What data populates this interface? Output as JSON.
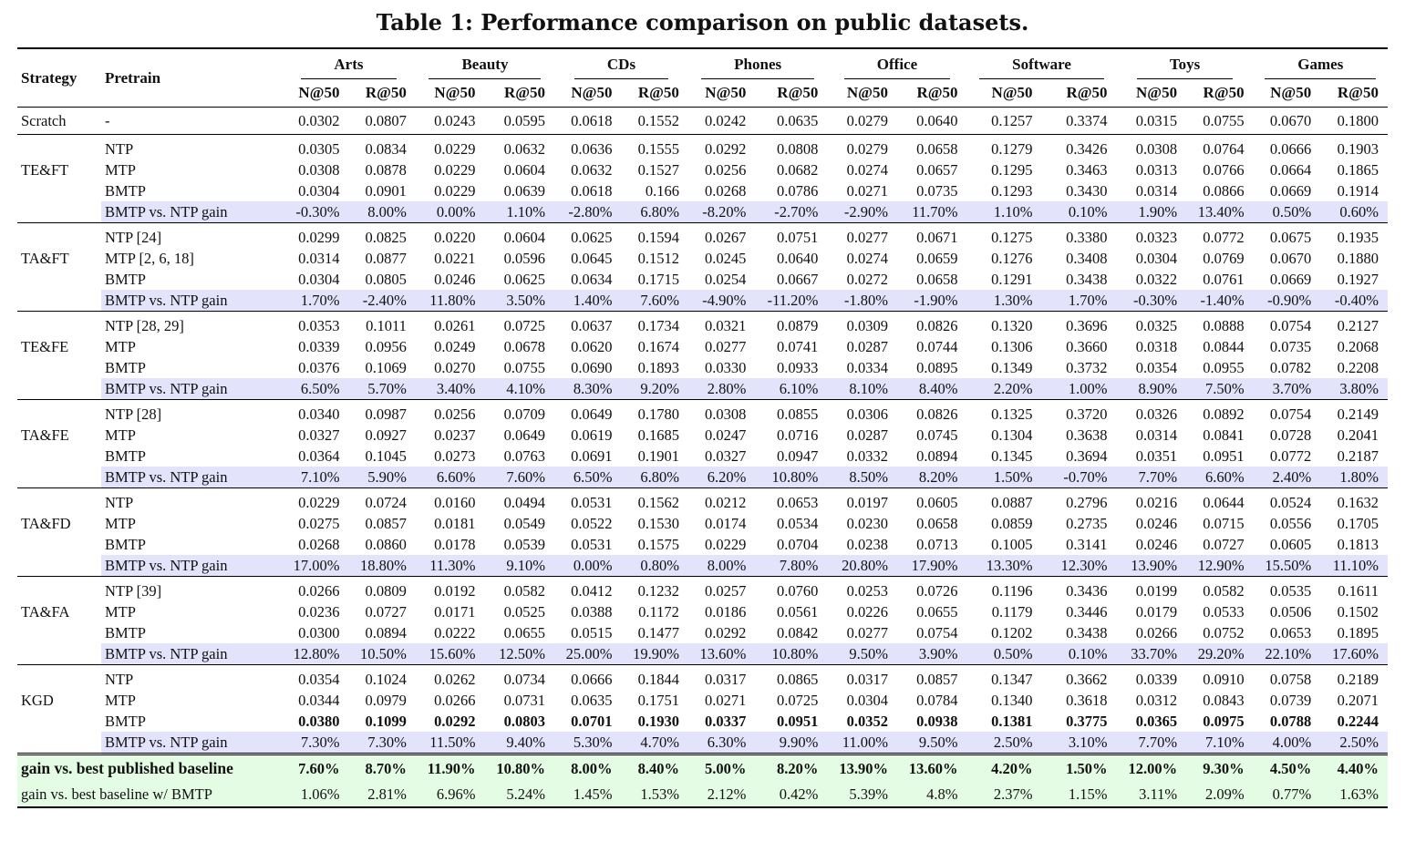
{
  "caption": "Table 1: Performance comparison on public datasets.",
  "headers": {
    "strategy": "Strategy",
    "pretrain": "Pretrain",
    "datasets": [
      "Arts",
      "Beauty",
      "CDs",
      "Phones",
      "Office",
      "Software",
      "Toys",
      "Games"
    ],
    "metrics": [
      "N@50",
      "R@50"
    ]
  },
  "scratch": {
    "strategy": "Scratch",
    "pretrain": "-",
    "values": [
      "0.0302",
      "0.0807",
      "0.0243",
      "0.0595",
      "0.0618",
      "0.1552",
      "0.0242",
      "0.0635",
      "0.0279",
      "0.0640",
      "0.1257",
      "0.3374",
      "0.0315",
      "0.0755",
      "0.0670",
      "0.1800"
    ]
  },
  "groups": [
    {
      "strategy": "TE&FT",
      "rows": [
        {
          "pretrain": "NTP",
          "values": [
            "0.0305",
            "0.0834",
            "0.0229",
            "0.0632",
            "0.0636",
            "0.1555",
            "0.0292",
            "0.0808",
            "0.0279",
            "0.0658",
            "0.1279",
            "0.3426",
            "0.0308",
            "0.0764",
            "0.0666",
            "0.1903"
          ]
        },
        {
          "pretrain": "MTP",
          "values": [
            "0.0308",
            "0.0878",
            "0.0229",
            "0.0604",
            "0.0632",
            "0.1527",
            "0.0256",
            "0.0682",
            "0.0274",
            "0.0657",
            "0.1295",
            "0.3463",
            "0.0313",
            "0.0766",
            "0.0664",
            "0.1865"
          ]
        },
        {
          "pretrain": "BMTP",
          "values": [
            "0.0304",
            "0.0901",
            "0.0229",
            "0.0639",
            "0.0618",
            "0.166",
            "0.0268",
            "0.0786",
            "0.0271",
            "0.0735",
            "0.1293",
            "0.3430",
            "0.0314",
            "0.0866",
            "0.0669",
            "0.1914"
          ]
        },
        {
          "pretrain": "BMTP vs. NTP gain",
          "gain": true,
          "values": [
            "-0.30%",
            "8.00%",
            "0.00%",
            "1.10%",
            "-2.80%",
            "6.80%",
            "-8.20%",
            "-2.70%",
            "-2.90%",
            "11.70%",
            "1.10%",
            "0.10%",
            "1.90%",
            "13.40%",
            "0.50%",
            "0.60%"
          ]
        }
      ]
    },
    {
      "strategy": "TA&FT",
      "rows": [
        {
          "pretrain": "NTP [24]",
          "values": [
            "0.0299",
            "0.0825",
            "0.0220",
            "0.0604",
            "0.0625",
            "0.1594",
            "0.0267",
            "0.0751",
            "0.0277",
            "0.0671",
            "0.1275",
            "0.3380",
            "0.0323",
            "0.0772",
            "0.0675",
            "0.1935"
          ]
        },
        {
          "pretrain": "MTP [2, 6, 18]",
          "values": [
            "0.0314",
            "0.0877",
            "0.0221",
            "0.0596",
            "0.0645",
            "0.1512",
            "0.0245",
            "0.0640",
            "0.0274",
            "0.0659",
            "0.1276",
            "0.3408",
            "0.0304",
            "0.0769",
            "0.0670",
            "0.1880"
          ]
        },
        {
          "pretrain": "BMTP",
          "values": [
            "0.0304",
            "0.0805",
            "0.0246",
            "0.0625",
            "0.0634",
            "0.1715",
            "0.0254",
            "0.0667",
            "0.0272",
            "0.0658",
            "0.1291",
            "0.3438",
            "0.0322",
            "0.0761",
            "0.0669",
            "0.1927"
          ]
        },
        {
          "pretrain": "BMTP vs. NTP gain",
          "gain": true,
          "values": [
            "1.70%",
            "-2.40%",
            "11.80%",
            "3.50%",
            "1.40%",
            "7.60%",
            "-4.90%",
            "-11.20%",
            "-1.80%",
            "-1.90%",
            "1.30%",
            "1.70%",
            "-0.30%",
            "-1.40%",
            "-0.90%",
            "-0.40%"
          ]
        }
      ]
    },
    {
      "strategy": "TE&FE",
      "rows": [
        {
          "pretrain": "NTP [28, 29]",
          "values": [
            "0.0353",
            "0.1011",
            "0.0261",
            "0.0725",
            "0.0637",
            "0.1734",
            "0.0321",
            "0.0879",
            "0.0309",
            "0.0826",
            "0.1320",
            "0.3696",
            "0.0325",
            "0.0888",
            "0.0754",
            "0.2127"
          ]
        },
        {
          "pretrain": "MTP",
          "values": [
            "0.0339",
            "0.0956",
            "0.0249",
            "0.0678",
            "0.0620",
            "0.1674",
            "0.0277",
            "0.0741",
            "0.0287",
            "0.0744",
            "0.1306",
            "0.3660",
            "0.0318",
            "0.0844",
            "0.0735",
            "0.2068"
          ]
        },
        {
          "pretrain": "BMTP",
          "values": [
            "0.0376",
            "0.1069",
            "0.0270",
            "0.0755",
            "0.0690",
            "0.1893",
            "0.0330",
            "0.0933",
            "0.0334",
            "0.0895",
            "0.1349",
            "0.3732",
            "0.0354",
            "0.0955",
            "0.0782",
            "0.2208"
          ]
        },
        {
          "pretrain": "BMTP vs. NTP gain",
          "gain": true,
          "values": [
            "6.50%",
            "5.70%",
            "3.40%",
            "4.10%",
            "8.30%",
            "9.20%",
            "2.80%",
            "6.10%",
            "8.10%",
            "8.40%",
            "2.20%",
            "1.00%",
            "8.90%",
            "7.50%",
            "3.70%",
            "3.80%"
          ]
        }
      ]
    },
    {
      "strategy": "TA&FE",
      "rows": [
        {
          "pretrain": "NTP [28]",
          "values": [
            "0.0340",
            "0.0987",
            "0.0256",
            "0.0709",
            "0.0649",
            "0.1780",
            "0.0308",
            "0.0855",
            "0.0306",
            "0.0826",
            "0.1325",
            "0.3720",
            "0.0326",
            "0.0892",
            "0.0754",
            "0.2149"
          ]
        },
        {
          "pretrain": "MTP",
          "values": [
            "0.0327",
            "0.0927",
            "0.0237",
            "0.0649",
            "0.0619",
            "0.1685",
            "0.0247",
            "0.0716",
            "0.0287",
            "0.0745",
            "0.1304",
            "0.3638",
            "0.0314",
            "0.0841",
            "0.0728",
            "0.2041"
          ]
        },
        {
          "pretrain": "BMTP",
          "values": [
            "0.0364",
            "0.1045",
            "0.0273",
            "0.0763",
            "0.0691",
            "0.1901",
            "0.0327",
            "0.0947",
            "0.0332",
            "0.0894",
            "0.1345",
            "0.3694",
            "0.0351",
            "0.0951",
            "0.0772",
            "0.2187"
          ]
        },
        {
          "pretrain": "BMTP vs. NTP gain",
          "gain": true,
          "values": [
            "7.10%",
            "5.90%",
            "6.60%",
            "7.60%",
            "6.50%",
            "6.80%",
            "6.20%",
            "10.80%",
            "8.50%",
            "8.20%",
            "1.50%",
            "-0.70%",
            "7.70%",
            "6.60%",
            "2.40%",
            "1.80%"
          ]
        }
      ]
    },
    {
      "strategy": "TA&FD",
      "rows": [
        {
          "pretrain": "NTP",
          "values": [
            "0.0229",
            "0.0724",
            "0.0160",
            "0.0494",
            "0.0531",
            "0.1562",
            "0.0212",
            "0.0653",
            "0.0197",
            "0.0605",
            "0.0887",
            "0.2796",
            "0.0216",
            "0.0644",
            "0.0524",
            "0.1632"
          ]
        },
        {
          "pretrain": "MTP",
          "values": [
            "0.0275",
            "0.0857",
            "0.0181",
            "0.0549",
            "0.0522",
            "0.1530",
            "0.0174",
            "0.0534",
            "0.0230",
            "0.0658",
            "0.0859",
            "0.2735",
            "0.0246",
            "0.0715",
            "0.0556",
            "0.1705"
          ]
        },
        {
          "pretrain": "BMTP",
          "values": [
            "0.0268",
            "0.0860",
            "0.0178",
            "0.0539",
            "0.0531",
            "0.1575",
            "0.0229",
            "0.0704",
            "0.0238",
            "0.0713",
            "0.1005",
            "0.3141",
            "0.0246",
            "0.0727",
            "0.0605",
            "0.1813"
          ]
        },
        {
          "pretrain": "BMTP vs. NTP gain",
          "gain": true,
          "values": [
            "17.00%",
            "18.80%",
            "11.30%",
            "9.10%",
            "0.00%",
            "0.80%",
            "8.00%",
            "7.80%",
            "20.80%",
            "17.90%",
            "13.30%",
            "12.30%",
            "13.90%",
            "12.90%",
            "15.50%",
            "11.10%"
          ]
        }
      ]
    },
    {
      "strategy": "TA&FA",
      "rows": [
        {
          "pretrain": "NTP [39]",
          "values": [
            "0.0266",
            "0.0809",
            "0.0192",
            "0.0582",
            "0.0412",
            "0.1232",
            "0.0257",
            "0.0760",
            "0.0253",
            "0.0726",
            "0.1196",
            "0.3436",
            "0.0199",
            "0.0582",
            "0.0535",
            "0.1611"
          ]
        },
        {
          "pretrain": "MTP",
          "values": [
            "0.0236",
            "0.0727",
            "0.0171",
            "0.0525",
            "0.0388",
            "0.1172",
            "0.0186",
            "0.0561",
            "0.0226",
            "0.0655",
            "0.1179",
            "0.3446",
            "0.0179",
            "0.0533",
            "0.0506",
            "0.1502"
          ]
        },
        {
          "pretrain": "BMTP",
          "values": [
            "0.0300",
            "0.0894",
            "0.0222",
            "0.0655",
            "0.0515",
            "0.1477",
            "0.0292",
            "0.0842",
            "0.0277",
            "0.0754",
            "0.1202",
            "0.3438",
            "0.0266",
            "0.0752",
            "0.0653",
            "0.1895"
          ]
        },
        {
          "pretrain": "BMTP vs. NTP gain",
          "gain": true,
          "values": [
            "12.80%",
            "10.50%",
            "15.60%",
            "12.50%",
            "25.00%",
            "19.90%",
            "13.60%",
            "10.80%",
            "9.50%",
            "3.90%",
            "0.50%",
            "0.10%",
            "33.70%",
            "29.20%",
            "22.10%",
            "17.60%"
          ]
        }
      ]
    },
    {
      "strategy": "KGD",
      "rows": [
        {
          "pretrain": "NTP",
          "values": [
            "0.0354",
            "0.1024",
            "0.0262",
            "0.0734",
            "0.0666",
            "0.1844",
            "0.0317",
            "0.0865",
            "0.0317",
            "0.0857",
            "0.1347",
            "0.3662",
            "0.0339",
            "0.0910",
            "0.0758",
            "0.2189"
          ]
        },
        {
          "pretrain": "MTP",
          "values": [
            "0.0344",
            "0.0979",
            "0.0266",
            "0.0731",
            "0.0635",
            "0.1751",
            "0.0271",
            "0.0725",
            "0.0304",
            "0.0784",
            "0.1340",
            "0.3618",
            "0.0312",
            "0.0843",
            "0.0739",
            "0.2071"
          ]
        },
        {
          "pretrain": "BMTP",
          "bold": true,
          "values": [
            "0.0380",
            "0.1099",
            "0.0292",
            "0.0803",
            "0.0701",
            "0.1930",
            "0.0337",
            "0.0951",
            "0.0352",
            "0.0938",
            "0.1381",
            "0.3775",
            "0.0365",
            "0.0975",
            "0.0788",
            "0.2244"
          ]
        },
        {
          "pretrain": "BMTP vs. NTP gain",
          "gain": true,
          "values": [
            "7.30%",
            "7.30%",
            "11.50%",
            "9.40%",
            "5.30%",
            "4.70%",
            "6.30%",
            "9.90%",
            "11.00%",
            "9.50%",
            "2.50%",
            "3.10%",
            "7.70%",
            "7.10%",
            "4.00%",
            "2.50%"
          ]
        }
      ]
    }
  ],
  "summary": [
    {
      "label": "gain vs. best published baseline",
      "bold": true,
      "values": [
        "7.60%",
        "8.70%",
        "11.90%",
        "10.80%",
        "8.00%",
        "8.40%",
        "5.00%",
        "8.20%",
        "13.90%",
        "13.60%",
        "4.20%",
        "1.50%",
        "12.00%",
        "9.30%",
        "4.50%",
        "4.40%"
      ]
    },
    {
      "label": "gain vs. best baseline w/ BMTP",
      "bold": false,
      "values": [
        "1.06%",
        "2.81%",
        "6.96%",
        "5.24%",
        "1.45%",
        "1.53%",
        "2.12%",
        "0.42%",
        "5.39%",
        "4.8%",
        "2.37%",
        "1.15%",
        "3.11%",
        "2.09%",
        "0.77%",
        "1.63%"
      ]
    }
  ]
}
